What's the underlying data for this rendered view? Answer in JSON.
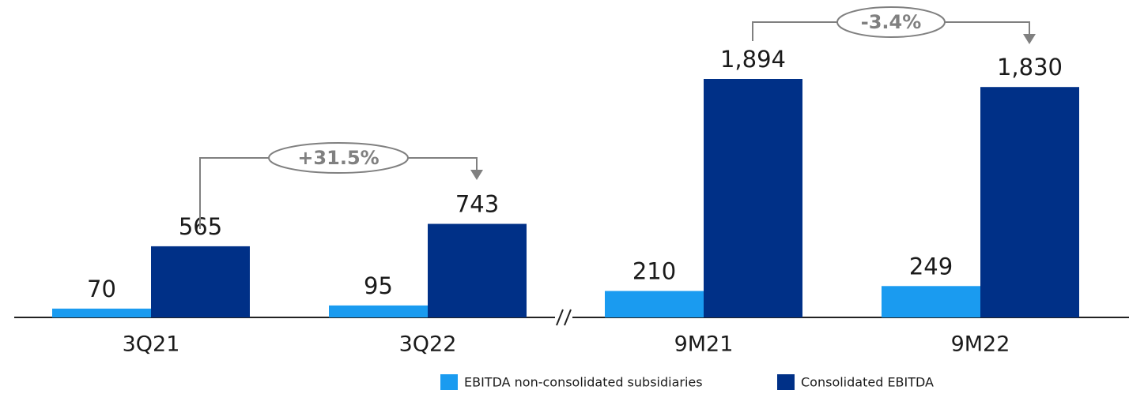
{
  "chart_data": {
    "type": "bar",
    "categories": [
      "3Q21",
      "3Q22",
      "9M21",
      "9M22"
    ],
    "series": [
      {
        "name": "EBITDA non-consolidated subsidiaries",
        "color": "#1a9bf0",
        "values": [
          70,
          95,
          210,
          249
        ]
      },
      {
        "name": "Consolidated EBITDA",
        "color": "#003087",
        "values": [
          565,
          743,
          1894,
          1830
        ],
        "value_labels": [
          "565",
          "743",
          "1,894",
          "1,830"
        ]
      }
    ],
    "annotations": [
      "+31.5%",
      "-3.4%"
    ]
  }
}
